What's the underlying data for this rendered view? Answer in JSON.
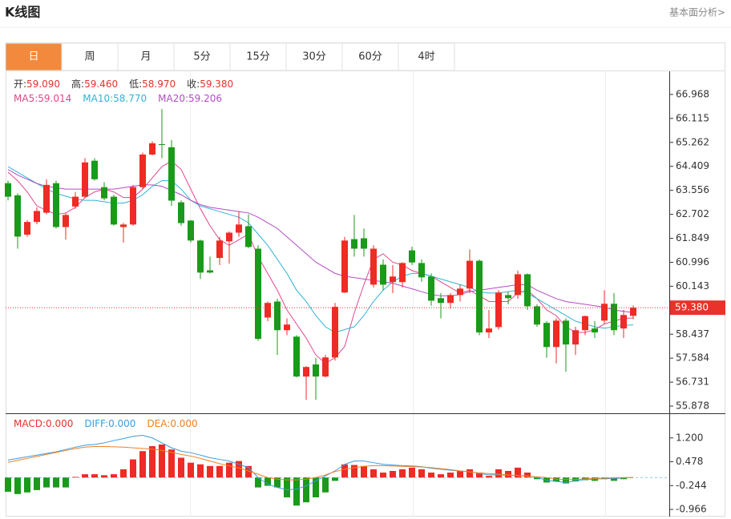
{
  "header": {
    "title": "K线图",
    "link": "基本面分析>"
  },
  "tabs": [
    "日",
    "周",
    "月",
    "5分",
    "15分",
    "30分",
    "60分",
    "4时"
  ],
  "active_tab": 0,
  "chart_data": [
    {
      "type": "candlestick",
      "up_color": "#ee2b24",
      "down_color": "#1a9a1a",
      "ylim": [
        55.651,
        67.793
      ],
      "yticks": [
        66.968,
        66.115,
        65.262,
        64.409,
        63.556,
        62.702,
        61.849,
        60.996,
        60.143,
        58.437,
        57.584,
        56.731,
        55.878
      ],
      "readout": [
        {
          "label": "开:",
          "value": "59.090"
        },
        {
          "label": "高:",
          "value": "59.460"
        },
        {
          "label": "低:",
          "value": "58.970"
        },
        {
          "label": "收:",
          "value": "59.380"
        }
      ],
      "ma_readout": [
        {
          "label": "MA5:",
          "value": "59.014",
          "color": "#e0488c"
        },
        {
          "label": "MA10:",
          "value": "58.770",
          "color": "#2eb4d6"
        },
        {
          "label": "MA20:",
          "value": "59.206",
          "color": "#b24cc4"
        }
      ],
      "last_price": {
        "value": 59.38,
        "label": "59.380"
      },
      "open": [
        63.81,
        63.38,
        61.98,
        62.43,
        62.76,
        63.81,
        62.25,
        62.98,
        63.33,
        64.61,
        63.67,
        63.33,
        62.25,
        62.34,
        63.67,
        64.83,
        65.2,
        65.09,
        63.13,
        62.48,
        61.77,
        60.71,
        61.15,
        61.74,
        62.05,
        62.28,
        61.48,
        59.03,
        59.6,
        58.58,
        58.35,
        56.93,
        57.36,
        56.93,
        57.61,
        59.92,
        61.82,
        61.85,
        60.2,
        60.91,
        60.29,
        60.29,
        61.42,
        60.97,
        60.49,
        59.72,
        59.55,
        59.83,
        60.06,
        61.05,
        58.5,
        58.69,
        59.83,
        59.83,
        60.57,
        59.43,
        58.84,
        57.98,
        58.92,
        58.07,
        58.58,
        58.64,
        58.92,
        59.52,
        58.64,
        59.09
      ],
      "high": [
        63.9,
        63.45,
        62.5,
        62.95,
        63.95,
        63.9,
        62.75,
        63.5,
        64.7,
        64.7,
        63.85,
        63.4,
        62.4,
        63.75,
        64.9,
        65.3,
        66.45,
        65.35,
        63.2,
        62.5,
        61.8,
        61.2,
        61.9,
        62.1,
        62.8,
        62.7,
        61.6,
        59.6,
        59.7,
        59.0,
        58.4,
        57.3,
        57.6,
        57.7,
        59.55,
        61.9,
        62.68,
        62.2,
        61.6,
        61.1,
        60.9,
        61.0,
        61.55,
        61.1,
        60.6,
        59.9,
        59.9,
        60.2,
        61.45,
        61.1,
        59.3,
        60.0,
        59.95,
        60.7,
        60.6,
        59.5,
        58.9,
        59.0,
        59.0,
        58.7,
        59.1,
        58.9,
        60.0,
        59.9,
        59.3,
        59.46
      ],
      "low": [
        63.2,
        61.48,
        61.9,
        62.35,
        62.7,
        62.2,
        61.8,
        62.9,
        63.3,
        63.9,
        63.2,
        62.3,
        61.7,
        62.3,
        63.6,
        64.8,
        64.7,
        63.0,
        62.3,
        61.7,
        60.4,
        60.6,
        60.9,
        60.95,
        61.9,
        61.5,
        58.2,
        58.9,
        57.7,
        58.4,
        56.9,
        56.1,
        56.1,
        56.9,
        57.5,
        59.9,
        61.2,
        61.2,
        60.1,
        60.0,
        59.9,
        60.1,
        60.9,
        60.3,
        59.45,
        59.0,
        59.35,
        59.6,
        59.9,
        58.4,
        58.3,
        58.6,
        59.5,
        59.7,
        59.3,
        58.7,
        57.6,
        57.4,
        57.1,
        57.7,
        58.4,
        58.3,
        58.8,
        58.4,
        58.3,
        58.97
      ],
      "close": [
        63.33,
        61.91,
        62.43,
        62.82,
        63.75,
        62.25,
        62.68,
        63.33,
        64.55,
        63.95,
        63.27,
        62.34,
        62.34,
        63.67,
        64.83,
        65.23,
        65.17,
        63.19,
        62.39,
        61.77,
        60.63,
        60.63,
        61.77,
        62.05,
        62.34,
        61.54,
        58.27,
        59.55,
        58.58,
        58.78,
        56.93,
        57.27,
        56.93,
        57.61,
        59.41,
        61.77,
        61.48,
        61.48,
        61.48,
        60.2,
        60.49,
        60.97,
        60.99,
        60.46,
        59.63,
        59.55,
        59.83,
        60.06,
        61.05,
        58.5,
        58.64,
        59.92,
        59.72,
        60.57,
        59.43,
        58.78,
        57.98,
        58.92,
        58.07,
        58.58,
        59.08,
        58.5,
        59.52,
        58.58,
        59.12,
        59.38
      ],
      "series": [
        {
          "color": "#e0488c",
          "values": [
            64.2,
            63.9,
            63.5,
            63.0,
            62.85,
            62.7,
            62.75,
            62.95,
            63.3,
            63.5,
            63.6,
            63.5,
            63.3,
            63.3,
            63.6,
            64.0,
            64.4,
            64.6,
            64.3,
            63.6,
            62.9,
            62.3,
            61.8,
            61.6,
            61.8,
            62.0,
            61.2,
            60.6,
            60.0,
            59.3,
            58.8,
            58.3,
            57.7,
            57.4,
            57.6,
            58.0,
            59.2,
            60.2,
            61.1,
            61.3,
            61.0,
            60.9,
            60.7,
            60.6,
            60.5,
            60.3,
            60.1,
            59.9,
            60.0,
            59.8,
            59.6,
            59.6,
            59.6,
            59.9,
            60.0,
            59.7,
            59.3,
            59.1,
            58.7,
            58.5,
            58.5,
            58.6,
            58.8,
            58.9,
            59.0,
            59.014
          ]
        },
        {
          "color": "#2eb4d6",
          "values": [
            64.4,
            64.2,
            64.0,
            63.8,
            63.6,
            63.45,
            63.35,
            63.25,
            63.2,
            63.2,
            63.15,
            63.1,
            63.1,
            63.2,
            63.4,
            63.7,
            63.9,
            63.9,
            63.6,
            63.2,
            63.0,
            62.9,
            62.8,
            62.7,
            62.6,
            62.4,
            62.0,
            61.6,
            61.1,
            60.6,
            60.0,
            59.6,
            59.1,
            58.7,
            58.5,
            58.6,
            58.7,
            59.1,
            59.6,
            60.0,
            60.3,
            60.5,
            60.6,
            60.6,
            60.5,
            60.4,
            60.3,
            60.2,
            60.1,
            59.95,
            59.9,
            59.9,
            59.95,
            60.0,
            59.9,
            59.7,
            59.5,
            59.3,
            59.1,
            58.9,
            58.8,
            58.7,
            58.65,
            58.7,
            58.75,
            58.77
          ]
        },
        {
          "color": "#b24cc4",
          "values": [
            64.3,
            64.1,
            63.95,
            63.8,
            63.7,
            63.65,
            63.6,
            63.6,
            63.6,
            63.6,
            63.6,
            63.6,
            63.65,
            63.7,
            63.75,
            63.75,
            63.7,
            63.55,
            63.4,
            63.2,
            63.05,
            62.95,
            62.9,
            62.85,
            62.8,
            62.75,
            62.6,
            62.4,
            62.2,
            61.9,
            61.6,
            61.3,
            61.0,
            60.8,
            60.6,
            60.5,
            60.45,
            60.4,
            60.35,
            60.3,
            60.25,
            60.15,
            60.05,
            59.95,
            59.85,
            59.8,
            59.8,
            59.85,
            59.95,
            60.0,
            60.05,
            60.1,
            60.15,
            60.2,
            60.2,
            60.0,
            59.85,
            59.7,
            59.6,
            59.55,
            59.5,
            59.45,
            59.4,
            59.3,
            59.25,
            59.206
          ]
        }
      ]
    },
    {
      "type": "macd",
      "ylim": [
        -1.183,
        1.922
      ],
      "yticks": [
        {
          "value": 1.2,
          "label": "1.200"
        },
        0.478,
        -0.244,
        -0.966
      ],
      "readout": [
        {
          "label": "MACD:",
          "value": "0.000",
          "color": "#e8322a"
        },
        {
          "label": "DIFF:",
          "value": "0.000",
          "color": "#3a9ce0"
        },
        {
          "label": "DEA:",
          "value": "0.000",
          "color": "#f08020"
        }
      ],
      "up_color": "#ee2b24",
      "down_color": "#1a9a1a",
      "values": [
        -0.43,
        -0.5,
        -0.45,
        -0.38,
        -0.3,
        -0.3,
        -0.3,
        0.02,
        0.1,
        0.1,
        0.07,
        0.1,
        0.25,
        0.55,
        0.8,
        0.95,
        1.0,
        0.85,
        0.6,
        0.45,
        0.4,
        0.35,
        0.35,
        0.45,
        0.5,
        0.35,
        -0.3,
        -0.25,
        -0.3,
        -0.6,
        -0.85,
        -0.75,
        -0.6,
        -0.45,
        -0.1,
        0.4,
        0.38,
        0.35,
        0.25,
        0.15,
        0.2,
        0.25,
        0.3,
        0.25,
        0.15,
        0.1,
        0.15,
        0.2,
        0.25,
        0.15,
        0.05,
        0.25,
        0.2,
        0.3,
        0.15,
        -0.05,
        -0.15,
        -0.12,
        -0.18,
        -0.12,
        -0.08,
        -0.1,
        -0.05,
        -0.1,
        -0.05,
        0.0
      ],
      "series": [
        {
          "color": "#3a9ce0",
          "values": [
            0.53,
            0.58,
            0.63,
            0.68,
            0.73,
            0.78,
            0.85,
            0.92,
            0.98,
            1.0,
            1.05,
            1.12,
            1.18,
            1.25,
            1.28,
            1.2,
            1.05,
            0.9,
            0.8,
            0.75,
            0.68,
            0.6,
            0.55,
            0.5,
            0.4,
            0.3,
            0.0,
            -0.2,
            -0.3,
            -0.37,
            -0.35,
            -0.25,
            -0.1,
            0.05,
            0.2,
            0.4,
            0.5,
            0.5,
            0.45,
            0.4,
            0.38,
            0.36,
            0.35,
            0.33,
            0.28,
            0.25,
            0.22,
            0.2,
            0.18,
            0.12,
            0.08,
            0.08,
            0.07,
            0.06,
            0.05,
            0.0,
            -0.08,
            -0.12,
            -0.15,
            -0.1,
            -0.06,
            -0.05,
            -0.03,
            -0.03,
            -0.01,
            0.0
          ]
        },
        {
          "color": "#f08020",
          "values": [
            0.46,
            0.52,
            0.58,
            0.64,
            0.7,
            0.76,
            0.82,
            0.88,
            0.92,
            0.94,
            0.94,
            0.93,
            0.92,
            0.9,
            0.88,
            0.86,
            0.82,
            0.76,
            0.7,
            0.65,
            0.58,
            0.5,
            0.42,
            0.35,
            0.29,
            0.2,
            0.1,
            0.0,
            -0.05,
            -0.07,
            -0.07,
            -0.05,
            0.0,
            0.08,
            0.18,
            0.25,
            0.3,
            0.34,
            0.36,
            0.36,
            0.35,
            0.34,
            0.33,
            0.32,
            0.3,
            0.27,
            0.24,
            0.2,
            0.17,
            0.14,
            0.12,
            0.1,
            0.08,
            0.06,
            0.04,
            0.02,
            0.0,
            -0.05,
            -0.06,
            -0.06,
            -0.04,
            -0.03,
            -0.02,
            -0.01,
            0.0,
            0.0
          ]
        }
      ]
    }
  ]
}
